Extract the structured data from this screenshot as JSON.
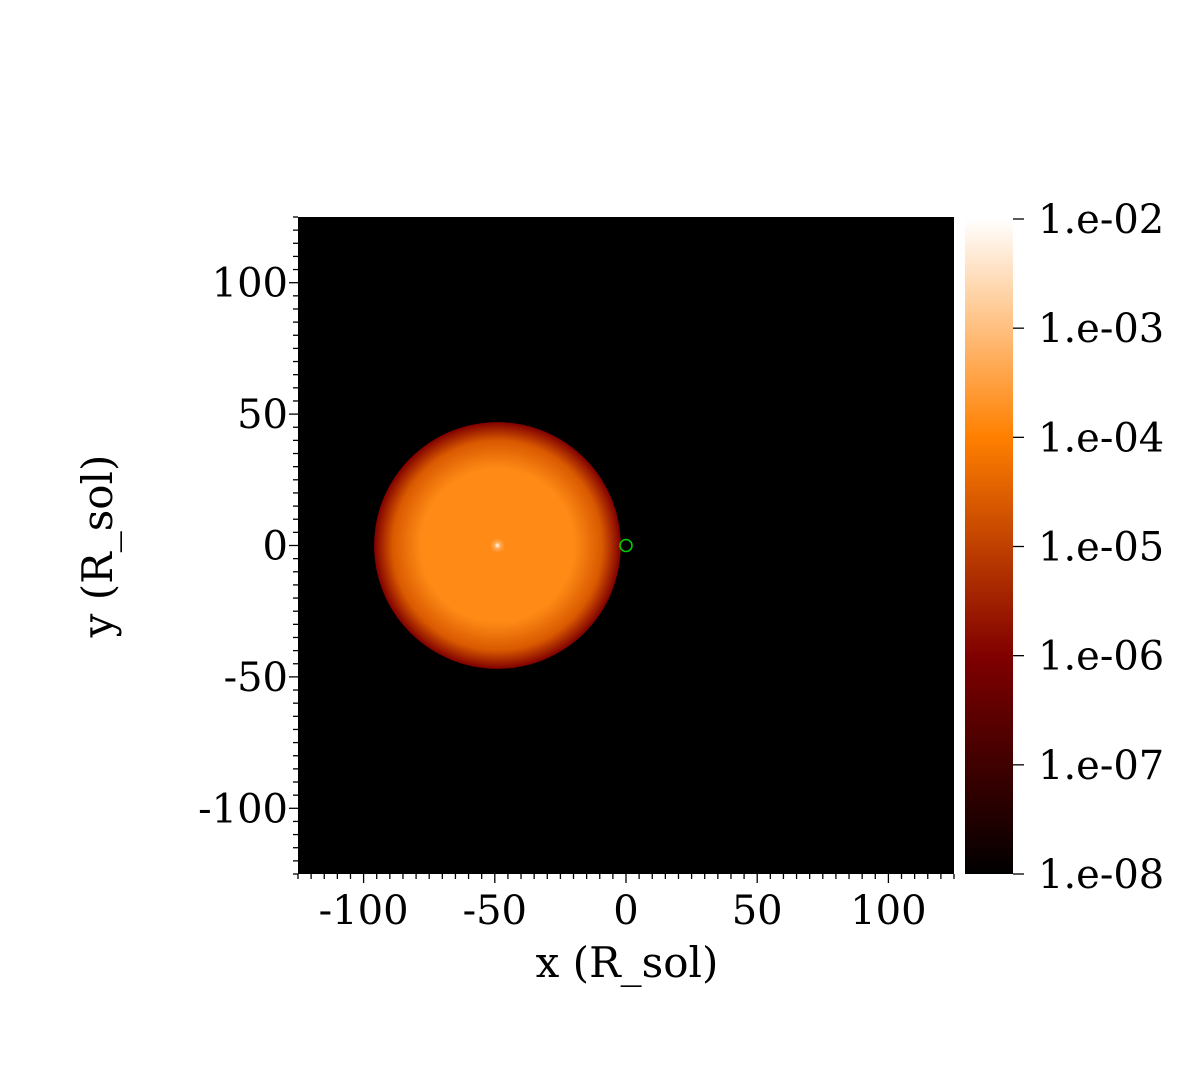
{
  "chart_data": {
    "type": "heatmap",
    "title": "",
    "xlabel": "x (R_sol)",
    "ylabel": "y (R_sol)",
    "xlim": [
      -125,
      125
    ],
    "ylim": [
      -125,
      125
    ],
    "x_ticks": [
      -100,
      -50,
      0,
      50,
      100
    ],
    "y_ticks": [
      -100,
      -50,
      0,
      50,
      100
    ],
    "x_tick_labels": [
      "-100",
      "-50",
      "0",
      "50",
      "100"
    ],
    "y_tick_labels": [
      "-100",
      "-50",
      "0",
      "50",
      "100"
    ],
    "grid": false,
    "background_value": "1.e-08",
    "colorbar": {
      "scale": "log",
      "range": [
        1e-08,
        0.01
      ],
      "ticks": [
        1e-08,
        1e-07,
        1e-06,
        1e-05,
        0.0001,
        0.001,
        0.01
      ],
      "tick_labels": [
        "1.e-08",
        "1.e-07",
        "1.e-06",
        "1.e-05",
        "1.e-04",
        "1.e-03",
        "1.e-02"
      ],
      "colormap": "afmhot",
      "colors": [
        "#000000",
        "#800000",
        "#ff8000",
        "#ffffff"
      ]
    },
    "star": {
      "center": [
        -49,
        0
      ],
      "radius": 47,
      "center_value": 0.01,
      "body_value": 0.00015,
      "edge_value": 1e-06
    },
    "marker": {
      "shape": "circle",
      "center": [
        0,
        0
      ],
      "color": "#00cc00"
    }
  }
}
